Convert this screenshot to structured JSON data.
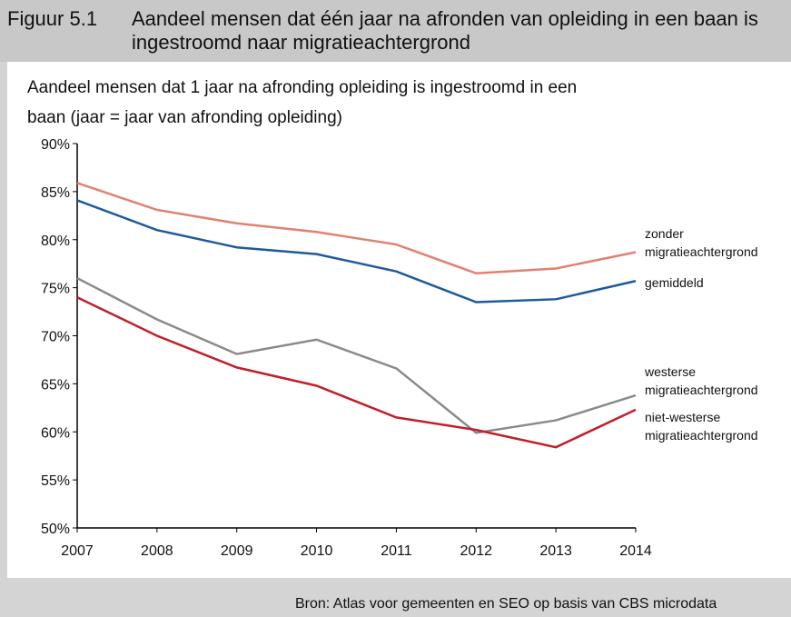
{
  "figure_label": "Figuur 5.1",
  "source": "Bron: Atlas voor gemeenten en SEO op basis van CBS microdata",
  "chart_data": {
    "type": "line",
    "title": "Aandeel mensen dat één jaar na afronden van opleiding in een baan is ingestroomd naar migratieachtergrond",
    "y_label": "Aandeel mensen dat 1 jaar na afronding opleiding is ingestroomd in een baan (jaar = jaar van afronding opleiding)",
    "categories": [
      "2007",
      "2008",
      "2009",
      "2010",
      "2011",
      "2012",
      "2013",
      "2014"
    ],
    "series": [
      {
        "name": "zonder migratieachtergrond",
        "color": "#e08270",
        "values": [
          85.9,
          83.1,
          81.7,
          80.8,
          79.5,
          76.5,
          77.0,
          78.7
        ]
      },
      {
        "name": "gemiddeld",
        "color": "#1f5a9c",
        "values": [
          84.1,
          81.0,
          79.2,
          78.5,
          76.7,
          73.5,
          73.8,
          75.7
        ]
      },
      {
        "name": "westerse migratieachtergrond",
        "color": "#8a8a8a",
        "values": [
          76.0,
          71.7,
          68.1,
          69.6,
          66.6,
          59.9,
          61.2,
          63.8
        ]
      },
      {
        "name": "niet-westerse migratieachtergrond",
        "color": "#c01f2a",
        "values": [
          74.0,
          70.0,
          66.7,
          64.8,
          61.5,
          60.2,
          58.4,
          62.3
        ]
      }
    ],
    "ylim": [
      50,
      90
    ],
    "yticks": [
      {
        "value": 50,
        "label": "50%"
      },
      {
        "value": 55,
        "label": "55%"
      },
      {
        "value": 60,
        "label": "60%"
      },
      {
        "value": 65,
        "label": "65%"
      },
      {
        "value": 70,
        "label": "70%"
      },
      {
        "value": 75,
        "label": "75%"
      },
      {
        "value": 80,
        "label": "80%"
      },
      {
        "value": 85,
        "label": "85%"
      },
      {
        "value": 90,
        "label": "90%"
      }
    ],
    "grid": false
  }
}
